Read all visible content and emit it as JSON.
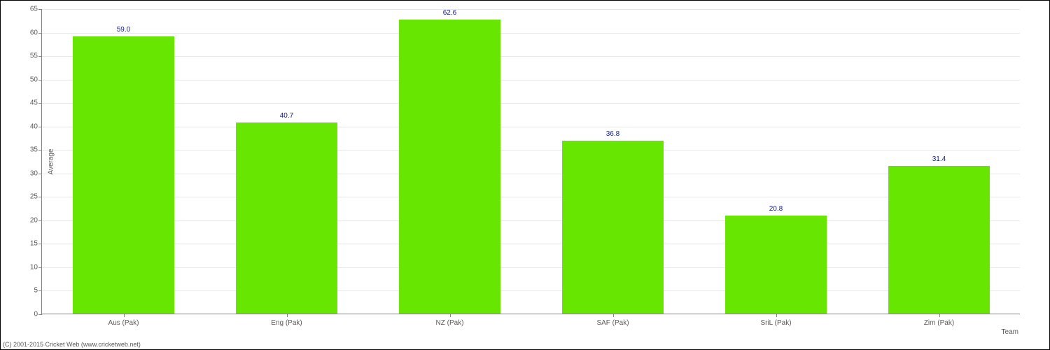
{
  "chart": {
    "type": "bar",
    "background_color": "#ffffff",
    "grid_color": "#e7e5e5",
    "axis_color": "#808080",
    "bar_color": "#66e600",
    "bar_width_ratio": 0.62,
    "tick_font_color": "#595959",
    "tick_font_size": 10,
    "value_label_color": "#0f1a8c",
    "value_label_font_size": 10,
    "axis_title_color": "#595959",
    "axis_title_font_size": 10,
    "ylabel": "Average",
    "xlabel": "Team",
    "ylim_min": 0,
    "ylim_max": 65,
    "ytick_step": 5,
    "categories": [
      "Aus (Pak)",
      "Eng (Pak)",
      "NZ (Pak)",
      "SAF (Pak)",
      "SriL (Pak)",
      "Zim (Pak)"
    ],
    "values": [
      59.0,
      40.7,
      62.6,
      36.8,
      20.8,
      31.4
    ],
    "value_labels": [
      "59.0",
      "40.7",
      "62.6",
      "36.8",
      "20.8",
      "31.4"
    ]
  },
  "footer": {
    "text": "(C) 2001-2015 Cricket Web (www.cricketweb.net)",
    "color": "#595959",
    "font_size": 9
  }
}
